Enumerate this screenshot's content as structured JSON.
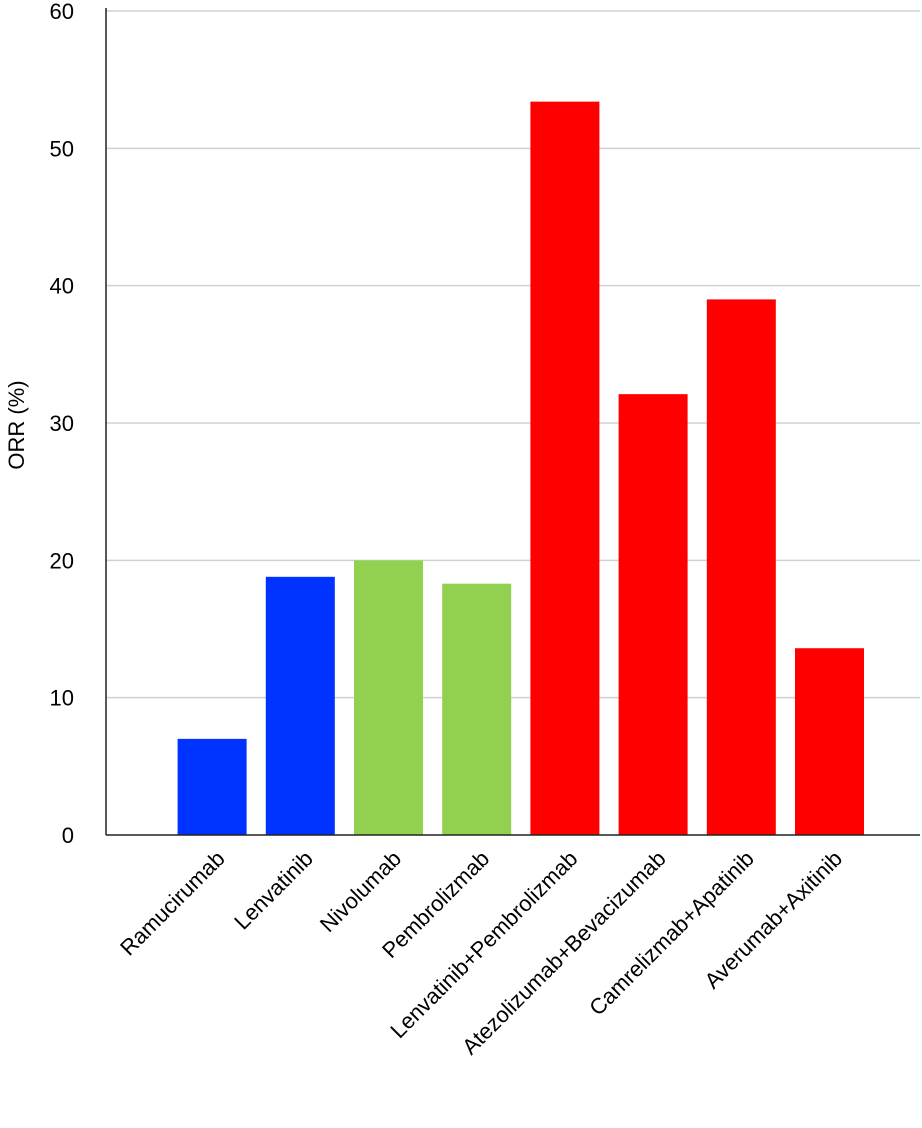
{
  "chart_data": {
    "type": "bar",
    "title": "",
    "xlabel": "",
    "ylabel": "ORR (%)",
    "ylim": [
      0,
      60
    ],
    "yticks": [
      0,
      10,
      20,
      30,
      40,
      50,
      60
    ],
    "grid": true,
    "categories": [
      "Ramucirumab",
      "Lenvatinib",
      "Nivolumab",
      "Pembrolizmab",
      "Lenvatinib+Pembrolizmab",
      "Atezolizumab+Bevacizumab",
      "Camrelizmab+Apatinib",
      "Averumab+Axitinib"
    ],
    "values": [
      7,
      18.8,
      20,
      18.3,
      53.4,
      32.1,
      39,
      13.6
    ],
    "colors": [
      "#0033ff",
      "#0033ff",
      "#92d050",
      "#92d050",
      "#ff0000",
      "#ff0000",
      "#ff0000",
      "#ff0000"
    ]
  }
}
